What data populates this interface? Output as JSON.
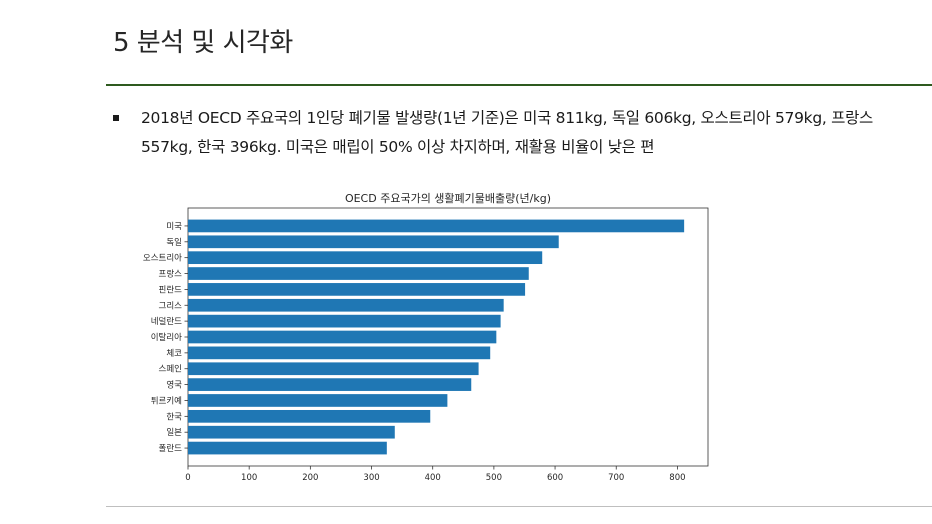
{
  "slide": {
    "title": "5 분석 및 시각화",
    "bullets": [
      "2018년 OECD 주요국의 1인당 폐기물 발생량(1년 기준)은 미국 811kg, 독일 606kg, 오스트리아 579kg, 프랑스 557kg, 한국 396kg. 미국은 매립이 50% 이상 차지하며, 재활용 비율이 낮은 편"
    ]
  },
  "colors": {
    "bar": "#1f77b4",
    "title_rule": "#2e5a1f",
    "bottom_rule": "#bfbfbf"
  },
  "chart_data": {
    "type": "bar",
    "orientation": "horizontal",
    "title": "OECD 주요국가의 생활폐기물배출량(년/kg)",
    "xlabel": "",
    "ylabel": "",
    "categories": [
      "미국",
      "독일",
      "오스트리아",
      "프랑스",
      "핀란드",
      "그리스",
      "네덜란드",
      "이탈리아",
      "체코",
      "스페인",
      "영국",
      "튀르키예",
      "한국",
      "일본",
      "폴란드"
    ],
    "values": [
      811,
      606,
      579,
      557,
      551,
      516,
      511,
      504,
      494,
      475,
      463,
      424,
      396,
      338,
      325
    ],
    "xlim": [
      0,
      850
    ],
    "xticks": [
      0,
      100,
      200,
      300,
      400,
      500,
      600,
      700,
      800
    ],
    "grid": false
  }
}
